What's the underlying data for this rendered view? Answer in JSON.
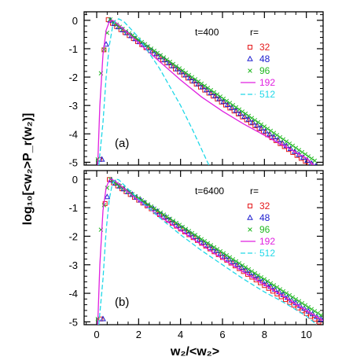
{
  "figure": {
    "ylabel": "log₁₀[<w₂>P_r(w₂)]",
    "xlabel": "w₂/<w₂>"
  },
  "chart_data": [
    {
      "type": "scatter",
      "panel_label": "(a)",
      "annotation": "t=400",
      "legend_title": "r=",
      "legend_placement": "top-right",
      "xlim": [
        -0.6,
        10.8
      ],
      "ylim": [
        -5.1,
        0.3
      ],
      "x_ticks": [
        0,
        2,
        4,
        6,
        8,
        10
      ],
      "y_ticks": [
        0,
        -1,
        -2,
        -3,
        -4,
        -5
      ],
      "series": [
        {
          "name": "32",
          "marker": "square",
          "color": "#e41a1c",
          "peak": [
            0.55,
            0.02
          ],
          "slope": 0.52,
          "x_start": 0.15,
          "x_end": 10.7,
          "step": 0.2
        },
        {
          "name": "48",
          "marker": "triangle",
          "color": "#2020d0",
          "peak": [
            0.6,
            0.03
          ],
          "slope": 0.515,
          "x_start": 0.25,
          "x_end": 10.7,
          "step": 0.2
        },
        {
          "name": "96",
          "marker": "cross",
          "color": "#22b822",
          "peak": [
            0.65,
            0.03
          ],
          "slope": 0.5,
          "x_start": 0.05,
          "x_end": 10.5,
          "step": 0.15
        },
        {
          "name": "192",
          "marker": "line",
          "color": "#e020e0",
          "points": [
            [
              0.05,
              -5.1
            ],
            [
              0.15,
              -3.0
            ],
            [
              0.3,
              -1.2
            ],
            [
              0.45,
              -0.35
            ],
            [
              0.6,
              -0.05
            ],
            [
              0.75,
              0.0
            ],
            [
              0.9,
              -0.07
            ],
            [
              1.5,
              -0.45
            ],
            [
              2,
              -0.8
            ],
            [
              3,
              -1.45
            ],
            [
              4,
              -2.1
            ],
            [
              5,
              -2.7
            ],
            [
              6,
              -3.2
            ],
            [
              7,
              -3.65
            ],
            [
              8,
              -4.05
            ],
            [
              9,
              -4.45
            ],
            [
              10,
              -4.85
            ],
            [
              10.35,
              -5.1
            ]
          ]
        },
        {
          "name": "512",
          "marker": "dash",
          "color": "#20d8e8",
          "points": [
            [
              0.1,
              -5.1
            ],
            [
              0.3,
              -3.6
            ],
            [
              0.45,
              -2.0
            ],
            [
              0.6,
              -0.9
            ],
            [
              0.75,
              -0.25
            ],
            [
              0.9,
              0.0
            ],
            [
              1.05,
              0.05
            ],
            [
              1.3,
              -0.05
            ],
            [
              2,
              -0.6
            ],
            [
              3,
              -1.7
            ],
            [
              4,
              -3.0
            ],
            [
              4.6,
              -3.9
            ],
            [
              5.1,
              -4.7
            ],
            [
              5.35,
              -5.1
            ]
          ]
        }
      ]
    },
    {
      "type": "scatter",
      "panel_label": "(b)",
      "annotation": "t=6400",
      "legend_title": "r=",
      "legend_placement": "top-right",
      "xlim": [
        -0.6,
        10.8
      ],
      "ylim": [
        -5.1,
        0.3
      ],
      "x_ticks": [
        0,
        2,
        4,
        6,
        8,
        10
      ],
      "y_ticks": [
        0,
        -1,
        -2,
        -3,
        -4,
        -5
      ],
      "series": [
        {
          "name": "32",
          "marker": "square",
          "color": "#e41a1c",
          "peak": [
            0.55,
            0.02
          ],
          "slope": 0.49,
          "x_start": 0.2,
          "x_end": 10.7,
          "step": 0.2
        },
        {
          "name": "48",
          "marker": "triangle",
          "color": "#2020d0",
          "peak": [
            0.6,
            0.03
          ],
          "slope": 0.48,
          "x_start": 0.3,
          "x_end": 10.7,
          "step": 0.2
        },
        {
          "name": "96",
          "marker": "cross",
          "color": "#22b822",
          "peak": [
            0.6,
            0.03
          ],
          "slope": 0.465,
          "x_start": 0.05,
          "x_end": 10.7,
          "step": 0.15
        },
        {
          "name": "192",
          "marker": "line",
          "color": "#e020e0",
          "points": [
            [
              0.05,
              -5.1
            ],
            [
              0.15,
              -3.0
            ],
            [
              0.3,
              -1.1
            ],
            [
              0.45,
              -0.3
            ],
            [
              0.6,
              -0.03
            ],
            [
              0.7,
              0.0
            ],
            [
              0.9,
              -0.08
            ],
            [
              1.5,
              -0.45
            ],
            [
              2,
              -0.75
            ],
            [
              3,
              -1.3
            ],
            [
              4,
              -1.8
            ],
            [
              5,
              -2.3
            ],
            [
              6,
              -2.8
            ],
            [
              7,
              -3.25
            ],
            [
              8,
              -3.7
            ],
            [
              9,
              -4.15
            ],
            [
              10,
              -4.6
            ],
            [
              10.8,
              -4.95
            ]
          ]
        },
        {
          "name": "512",
          "marker": "dash",
          "color": "#20d8e8",
          "points": [
            [
              0.1,
              -5.1
            ],
            [
              0.3,
              -3.5
            ],
            [
              0.45,
              -1.8
            ],
            [
              0.6,
              -0.7
            ],
            [
              0.75,
              -0.15
            ],
            [
              0.9,
              0.0
            ],
            [
              1.05,
              -0.02
            ],
            [
              1.5,
              -0.35
            ],
            [
              2,
              -0.7
            ],
            [
              3,
              -1.35
            ],
            [
              4,
              -1.95
            ],
            [
              5,
              -2.5
            ],
            [
              6,
              -3.0
            ],
            [
              7,
              -3.5
            ],
            [
              8,
              -3.95
            ],
            [
              9,
              -4.35
            ],
            [
              10,
              -4.8
            ],
            [
              10.5,
              -5.1
            ]
          ]
        }
      ]
    }
  ]
}
